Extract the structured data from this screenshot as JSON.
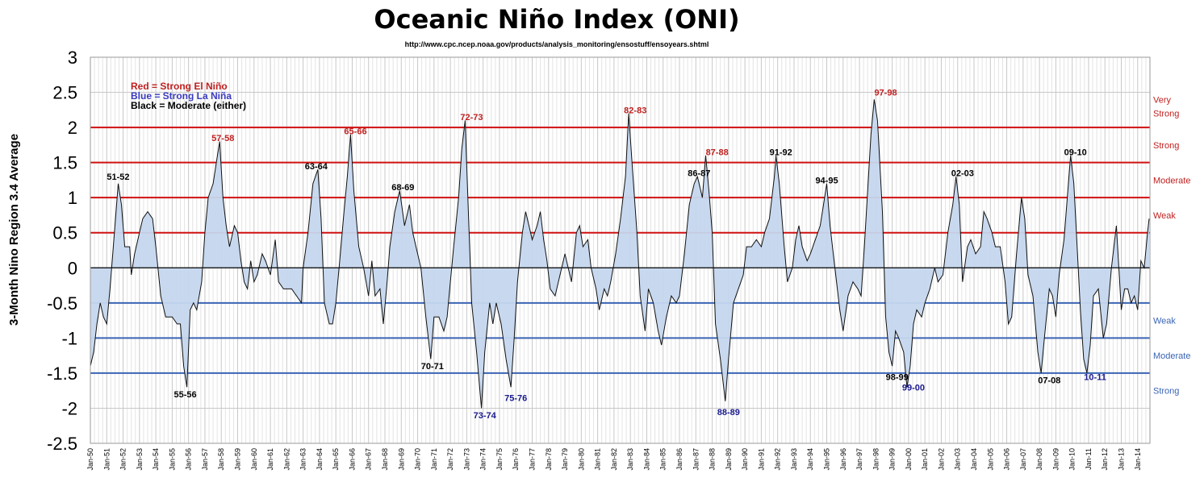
{
  "chart_data": {
    "type": "area",
    "title": "Oceanic Niño Index (ONI)",
    "subtitle": "http://www.cpc.ncep.noaa.gov/products/analysis_monitoring/ensostuff/ensoyears.shtml",
    "ylabel": "3-Month Nino Region 3.4 Average",
    "xlabel": "",
    "ylim": [
      -2.5,
      3
    ],
    "yticks": [
      3,
      2.5,
      2,
      1.5,
      1,
      0.5,
      0,
      -0.5,
      -1,
      -1.5,
      -2,
      -2.5
    ],
    "grid": true,
    "x_start": "Jan-50",
    "x_end": "Jan-14",
    "x_tick_labels": [
      "Jan-50",
      "Jan-51",
      "Jan-52",
      "Jan-53",
      "Jan-54",
      "Jan-55",
      "Jan-56",
      "Jan-57",
      "Jan-58",
      "Jan-59",
      "Jan-60",
      "Jan-61",
      "Jan-62",
      "Jan-63",
      "Jan-64",
      "Jan-65",
      "Jan-66",
      "Jan-67",
      "Jan-68",
      "Jan-69",
      "Jan-70",
      "Jan-71",
      "Jan-72",
      "Jan-73",
      "Jan-74",
      "Jan-75",
      "Jan-76",
      "Jan-77",
      "Jan-78",
      "Jan-79",
      "Jan-80",
      "Jan-81",
      "Jan-82",
      "Jan-83",
      "Jan-84",
      "Jan-85",
      "Jan-86",
      "Jan-87",
      "Jan-88",
      "Jan-89",
      "Jan-90",
      "Jan-91",
      "Jan-92",
      "Jan-93",
      "Jan-94",
      "Jan-95",
      "Jan-96",
      "Jan-97",
      "Jan-98",
      "Jan-99",
      "Jan-00",
      "Jan-01",
      "Jan-02",
      "Jan-03",
      "Jan-04",
      "Jan-05",
      "Jan-06",
      "Jan-07",
      "Jan-08",
      "Jan-09",
      "Jan-10",
      "Jan-11",
      "Jan-12",
      "Jan-13",
      "Jan-14"
    ],
    "series_name": "ONI",
    "series_keypoints": [
      [
        1950.0,
        -1.4
      ],
      [
        1950.2,
        -1.2
      ],
      [
        1950.4,
        -0.8
      ],
      [
        1950.6,
        -0.5
      ],
      [
        1950.8,
        -0.7
      ],
      [
        1951.0,
        -0.8
      ],
      [
        1951.2,
        -0.3
      ],
      [
        1951.4,
        0.3
      ],
      [
        1951.7,
        1.2
      ],
      [
        1951.9,
        0.9
      ],
      [
        1952.1,
        0.3
      ],
      [
        1952.4,
        0.3
      ],
      [
        1952.5,
        -0.1
      ],
      [
        1952.7,
        0.2
      ],
      [
        1953.0,
        0.5
      ],
      [
        1953.2,
        0.7
      ],
      [
        1953.5,
        0.8
      ],
      [
        1953.8,
        0.7
      ],
      [
        1954.0,
        0.3
      ],
      [
        1954.3,
        -0.4
      ],
      [
        1954.6,
        -0.7
      ],
      [
        1955.0,
        -0.7
      ],
      [
        1955.3,
        -0.8
      ],
      [
        1955.5,
        -0.8
      ],
      [
        1955.7,
        -1.4
      ],
      [
        1955.9,
        -1.7
      ],
      [
        1956.1,
        -0.6
      ],
      [
        1956.3,
        -0.5
      ],
      [
        1956.5,
        -0.6
      ],
      [
        1956.8,
        -0.2
      ],
      [
        1957.0,
        0.5
      ],
      [
        1957.2,
        1.0
      ],
      [
        1957.5,
        1.2
      ],
      [
        1957.7,
        1.5
      ],
      [
        1957.9,
        1.8
      ],
      [
        1958.1,
        1.0
      ],
      [
        1958.3,
        0.6
      ],
      [
        1958.5,
        0.3
      ],
      [
        1958.8,
        0.6
      ],
      [
        1959.0,
        0.5
      ],
      [
        1959.2,
        0.1
      ],
      [
        1959.4,
        -0.2
      ],
      [
        1959.6,
        -0.3
      ],
      [
        1959.8,
        0.1
      ],
      [
        1960.0,
        -0.2
      ],
      [
        1960.2,
        -0.1
      ],
      [
        1960.5,
        0.2
      ],
      [
        1960.7,
        0.1
      ],
      [
        1961.0,
        -0.1
      ],
      [
        1961.3,
        0.4
      ],
      [
        1961.5,
        -0.2
      ],
      [
        1961.8,
        -0.3
      ],
      [
        1962.0,
        -0.3
      ],
      [
        1962.3,
        -0.3
      ],
      [
        1962.6,
        -0.4
      ],
      [
        1962.9,
        -0.5
      ],
      [
        1963.0,
        0.0
      ],
      [
        1963.3,
        0.5
      ],
      [
        1963.6,
        1.2
      ],
      [
        1963.9,
        1.4
      ],
      [
        1964.1,
        0.7
      ],
      [
        1964.3,
        -0.5
      ],
      [
        1964.6,
        -0.8
      ],
      [
        1964.8,
        -0.8
      ],
      [
        1965.0,
        -0.5
      ],
      [
        1965.2,
        0.0
      ],
      [
        1965.5,
        0.8
      ],
      [
        1965.7,
        1.3
      ],
      [
        1965.9,
        1.9
      ],
      [
        1966.1,
        1.1
      ],
      [
        1966.4,
        0.3
      ],
      [
        1966.7,
        0.0
      ],
      [
        1967.0,
        -0.4
      ],
      [
        1967.2,
        0.1
      ],
      [
        1967.4,
        -0.4
      ],
      [
        1967.7,
        -0.3
      ],
      [
        1967.9,
        -0.8
      ],
      [
        1968.1,
        -0.3
      ],
      [
        1968.3,
        0.3
      ],
      [
        1968.6,
        0.8
      ],
      [
        1968.9,
        1.1
      ],
      [
        1969.2,
        0.6
      ],
      [
        1969.5,
        0.9
      ],
      [
        1969.7,
        0.5
      ],
      [
        1969.9,
        0.3
      ],
      [
        1970.2,
        0.0
      ],
      [
        1970.5,
        -0.7
      ],
      [
        1970.8,
        -1.3
      ],
      [
        1971.0,
        -0.7
      ],
      [
        1971.3,
        -0.7
      ],
      [
        1971.6,
        -0.9
      ],
      [
        1971.8,
        -0.7
      ],
      [
        1972.0,
        -0.2
      ],
      [
        1972.2,
        0.3
      ],
      [
        1972.5,
        1.0
      ],
      [
        1972.7,
        1.7
      ],
      [
        1972.9,
        2.1
      ],
      [
        1973.1,
        0.8
      ],
      [
        1973.3,
        -0.5
      ],
      [
        1973.6,
        -1.2
      ],
      [
        1973.9,
        -2.0
      ],
      [
        1974.1,
        -1.2
      ],
      [
        1974.4,
        -0.5
      ],
      [
        1974.6,
        -0.8
      ],
      [
        1974.8,
        -0.5
      ],
      [
        1975.1,
        -0.8
      ],
      [
        1975.4,
        -1.3
      ],
      [
        1975.7,
        -1.7
      ],
      [
        1975.9,
        -1.0
      ],
      [
        1976.1,
        -0.2
      ],
      [
        1976.4,
        0.5
      ],
      [
        1976.6,
        0.8
      ],
      [
        1976.8,
        0.6
      ],
      [
        1977.0,
        0.4
      ],
      [
        1977.3,
        0.6
      ],
      [
        1977.5,
        0.8
      ],
      [
        1977.7,
        0.4
      ],
      [
        1977.9,
        0.1
      ],
      [
        1978.1,
        -0.3
      ],
      [
        1978.4,
        -0.4
      ],
      [
        1978.7,
        -0.1
      ],
      [
        1979.0,
        0.2
      ],
      [
        1979.2,
        0.0
      ],
      [
        1979.4,
        -0.2
      ],
      [
        1979.7,
        0.5
      ],
      [
        1979.9,
        0.6
      ],
      [
        1980.1,
        0.3
      ],
      [
        1980.4,
        0.4
      ],
      [
        1980.6,
        0.0
      ],
      [
        1980.9,
        -0.3
      ],
      [
        1981.1,
        -0.6
      ],
      [
        1981.4,
        -0.3
      ],
      [
        1981.6,
        -0.4
      ],
      [
        1981.8,
        -0.2
      ],
      [
        1982.1,
        0.2
      ],
      [
        1982.4,
        0.7
      ],
      [
        1982.7,
        1.3
      ],
      [
        1982.9,
        2.2
      ],
      [
        1983.1,
        1.5
      ],
      [
        1983.4,
        0.5
      ],
      [
        1983.6,
        -0.4
      ],
      [
        1983.9,
        -0.9
      ],
      [
        1984.1,
        -0.3
      ],
      [
        1984.4,
        -0.5
      ],
      [
        1984.7,
        -0.9
      ],
      [
        1984.9,
        -1.1
      ],
      [
        1985.2,
        -0.7
      ],
      [
        1985.5,
        -0.4
      ],
      [
        1985.8,
        -0.5
      ],
      [
        1986.0,
        -0.4
      ],
      [
        1986.3,
        0.2
      ],
      [
        1986.6,
        0.9
      ],
      [
        1986.9,
        1.2
      ],
      [
        1987.1,
        1.3
      ],
      [
        1987.4,
        1.0
      ],
      [
        1987.6,
        1.6
      ],
      [
        1987.8,
        1.1
      ],
      [
        1988.0,
        0.5
      ],
      [
        1988.2,
        -0.8
      ],
      [
        1988.5,
        -1.3
      ],
      [
        1988.8,
        -1.9
      ],
      [
        1989.0,
        -1.3
      ],
      [
        1989.3,
        -0.5
      ],
      [
        1989.6,
        -0.3
      ],
      [
        1989.9,
        -0.1
      ],
      [
        1990.1,
        0.3
      ],
      [
        1990.4,
        0.3
      ],
      [
        1990.7,
        0.4
      ],
      [
        1991.0,
        0.3
      ],
      [
        1991.2,
        0.5
      ],
      [
        1991.5,
        0.7
      ],
      [
        1991.8,
        1.3
      ],
      [
        1991.9,
        1.6
      ],
      [
        1992.1,
        1.2
      ],
      [
        1992.4,
        0.3
      ],
      [
        1992.6,
        -0.2
      ],
      [
        1992.9,
        0.0
      ],
      [
        1993.1,
        0.4
      ],
      [
        1993.3,
        0.6
      ],
      [
        1993.5,
        0.3
      ],
      [
        1993.8,
        0.1
      ],
      [
        1994.0,
        0.2
      ],
      [
        1994.3,
        0.4
      ],
      [
        1994.6,
        0.6
      ],
      [
        1994.8,
        0.9
      ],
      [
        1995.0,
        1.2
      ],
      [
        1995.2,
        0.6
      ],
      [
        1995.5,
        0.0
      ],
      [
        1995.8,
        -0.6
      ],
      [
        1996.0,
        -0.9
      ],
      [
        1996.3,
        -0.4
      ],
      [
        1996.6,
        -0.2
      ],
      [
        1996.9,
        -0.3
      ],
      [
        1997.1,
        -0.4
      ],
      [
        1997.3,
        0.3
      ],
      [
        1997.5,
        1.1
      ],
      [
        1997.7,
        1.9
      ],
      [
        1997.9,
        2.4
      ],
      [
        1998.1,
        2.1
      ],
      [
        1998.4,
        0.8
      ],
      [
        1998.6,
        -0.7
      ],
      [
        1998.8,
        -1.2
      ],
      [
        1999.0,
        -1.4
      ],
      [
        1999.2,
        -0.9
      ],
      [
        1999.4,
        -1.0
      ],
      [
        1999.7,
        -1.2
      ],
      [
        1999.9,
        -1.7
      ],
      [
        2000.1,
        -1.4
      ],
      [
        2000.3,
        -0.8
      ],
      [
        2000.5,
        -0.6
      ],
      [
        2000.8,
        -0.7
      ],
      [
        2001.0,
        -0.5
      ],
      [
        2001.3,
        -0.3
      ],
      [
        2001.6,
        0.0
      ],
      [
        2001.8,
        -0.2
      ],
      [
        2002.1,
        -0.1
      ],
      [
        2002.4,
        0.5
      ],
      [
        2002.7,
        0.9
      ],
      [
        2002.9,
        1.3
      ],
      [
        2003.1,
        0.9
      ],
      [
        2003.3,
        -0.2
      ],
      [
        2003.6,
        0.3
      ],
      [
        2003.8,
        0.4
      ],
      [
        2004.1,
        0.2
      ],
      [
        2004.4,
        0.3
      ],
      [
        2004.6,
        0.8
      ],
      [
        2004.8,
        0.7
      ],
      [
        2005.1,
        0.5
      ],
      [
        2005.3,
        0.3
      ],
      [
        2005.6,
        0.3
      ],
      [
        2005.9,
        -0.2
      ],
      [
        2006.1,
        -0.8
      ],
      [
        2006.3,
        -0.7
      ],
      [
        2006.6,
        0.2
      ],
      [
        2006.9,
        1.0
      ],
      [
        2007.1,
        0.7
      ],
      [
        2007.3,
        -0.1
      ],
      [
        2007.6,
        -0.4
      ],
      [
        2007.9,
        -1.2
      ],
      [
        2008.1,
        -1.5
      ],
      [
        2008.3,
        -1.0
      ],
      [
        2008.6,
        -0.3
      ],
      [
        2008.8,
        -0.4
      ],
      [
        2009.0,
        -0.7
      ],
      [
        2009.2,
        -0.1
      ],
      [
        2009.5,
        0.4
      ],
      [
        2009.7,
        1.0
      ],
      [
        2009.9,
        1.6
      ],
      [
        2010.1,
        1.2
      ],
      [
        2010.3,
        0.3
      ],
      [
        2010.5,
        -0.6
      ],
      [
        2010.7,
        -1.3
      ],
      [
        2010.9,
        -1.5
      ],
      [
        2011.1,
        -1.1
      ],
      [
        2011.3,
        -0.4
      ],
      [
        2011.6,
        -0.3
      ],
      [
        2011.9,
        -1.0
      ],
      [
        2012.1,
        -0.8
      ],
      [
        2012.4,
        0.0
      ],
      [
        2012.7,
        0.6
      ],
      [
        2012.9,
        -0.2
      ],
      [
        2013.0,
        -0.6
      ],
      [
        2013.2,
        -0.3
      ],
      [
        2013.4,
        -0.3
      ],
      [
        2013.6,
        -0.5
      ],
      [
        2013.8,
        -0.4
      ],
      [
        2014.0,
        -0.6
      ],
      [
        2014.2,
        0.1
      ],
      [
        2014.4,
        0.0
      ],
      [
        2014.6,
        0.5
      ],
      [
        2014.7,
        0.7
      ]
    ],
    "threshold_lines": [
      {
        "value": 2.0,
        "color": "#d01010"
      },
      {
        "value": 1.5,
        "color": "#d01010"
      },
      {
        "value": 1.0,
        "color": "#d01010"
      },
      {
        "value": 0.5,
        "color": "#d01010"
      },
      {
        "value": -0.5,
        "color": "#3a64b4"
      },
      {
        "value": -1.0,
        "color": "#3a64b4"
      },
      {
        "value": -1.5,
        "color": "#3a64b4"
      }
    ],
    "right_labels": [
      {
        "text": "Very",
        "value": 2.4,
        "color": "#c02020"
      },
      {
        "text": "Strong",
        "value": 2.2,
        "color": "#c02020"
      },
      {
        "text": "Strong",
        "value": 1.75,
        "color": "#c02020"
      },
      {
        "text": "Moderate",
        "value": 1.25,
        "color": "#c02020"
      },
      {
        "text": "Weak",
        "value": 0.75,
        "color": "#c02020"
      },
      {
        "text": "Weak",
        "value": -0.75,
        "color": "#3a64b4"
      },
      {
        "text": "Moderate",
        "value": -1.25,
        "color": "#3a64b4"
      },
      {
        "text": "Strong",
        "value": -1.75,
        "color": "#3a64b4"
      }
    ],
    "legend": [
      {
        "text": "Red = Strong El Niño",
        "color": "#c02020"
      },
      {
        "text": "Blue = Strong La Niña",
        "color": "#3a3ac0"
      },
      {
        "text": "Black = Moderate (either)",
        "color": "#000000"
      }
    ],
    "event_labels": [
      {
        "text": "51-52",
        "x": 1951.7,
        "value": 1.3,
        "color": "#000000"
      },
      {
        "text": "55-56",
        "x": 1955.8,
        "value": -1.8,
        "color": "#000000"
      },
      {
        "text": "57-58",
        "x": 1958.1,
        "value": 1.85,
        "color": "#c02020"
      },
      {
        "text": "63-64",
        "x": 1963.8,
        "value": 1.45,
        "color": "#000000"
      },
      {
        "text": "65-66",
        "x": 1966.2,
        "value": 1.95,
        "color": "#c02020"
      },
      {
        "text": "68-69",
        "x": 1969.1,
        "value": 1.15,
        "color": "#000000"
      },
      {
        "text": "70-71",
        "x": 1970.9,
        "value": -1.4,
        "color": "#000000"
      },
      {
        "text": "72-73",
        "x": 1973.3,
        "value": 2.15,
        "color": "#c02020"
      },
      {
        "text": "73-74",
        "x": 1974.1,
        "value": -2.1,
        "color": "#1a1a8e"
      },
      {
        "text": "75-76",
        "x": 1976.0,
        "value": -1.85,
        "color": "#1a1a8e"
      },
      {
        "text": "82-83",
        "x": 1983.3,
        "value": 2.25,
        "color": "#c02020"
      },
      {
        "text": "86-87",
        "x": 1987.2,
        "value": 1.35,
        "color": "#000000"
      },
      {
        "text": "87-88",
        "x": 1988.3,
        "value": 1.65,
        "color": "#c02020"
      },
      {
        "text": "88-89",
        "x": 1989.0,
        "value": -2.05,
        "color": "#1a1a8e"
      },
      {
        "text": "91-92",
        "x": 1992.2,
        "value": 1.65,
        "color": "#000000"
      },
      {
        "text": "94-95",
        "x": 1995.0,
        "value": 1.25,
        "color": "#000000"
      },
      {
        "text": "97-98",
        "x": 1998.6,
        "value": 2.5,
        "color": "#c02020"
      },
      {
        "text": "98-99",
        "x": 1999.3,
        "value": -1.55,
        "color": "#000000"
      },
      {
        "text": "99-00",
        "x": 2000.3,
        "value": -1.7,
        "color": "#1a1a8e"
      },
      {
        "text": "02-03",
        "x": 2003.3,
        "value": 1.35,
        "color": "#000000"
      },
      {
        "text": "07-08",
        "x": 2008.6,
        "value": -1.6,
        "color": "#000000"
      },
      {
        "text": "09-10",
        "x": 2010.2,
        "value": 1.65,
        "color": "#000000"
      },
      {
        "text": "10-11",
        "x": 2011.4,
        "value": -1.55,
        "color": "#1a1a8e"
      }
    ]
  }
}
